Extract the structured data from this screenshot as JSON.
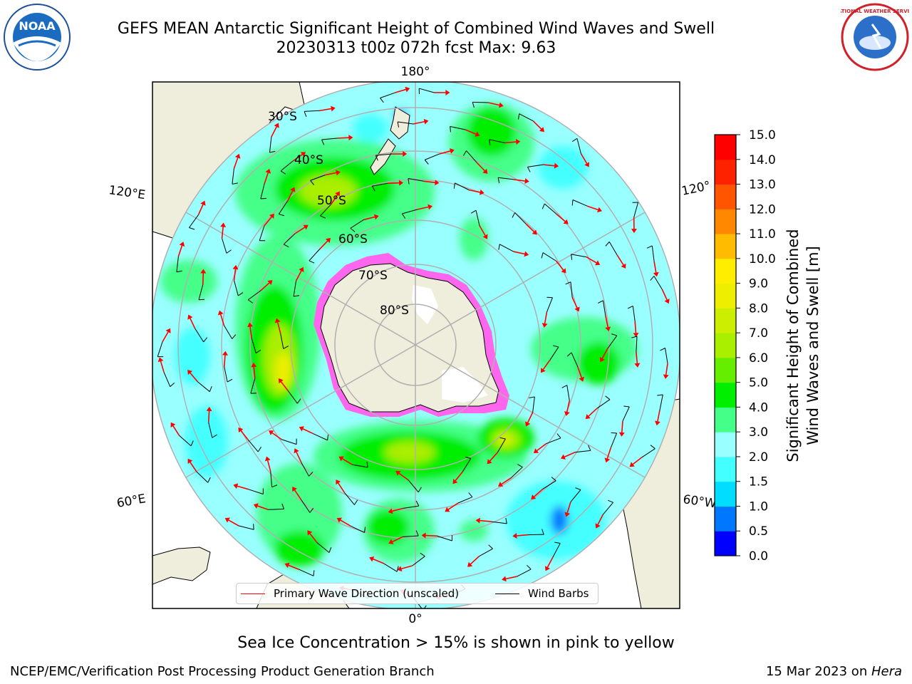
{
  "title": {
    "line1": "GEFS MEAN Antarctic Significant Height of Combined Wind Waves and Swell",
    "line2": "20230313 t00z 072h fcst   Max: 9.63"
  },
  "map": {
    "projection": "south-polar-stereographic",
    "longitude_labels": [
      "180°",
      "120°E",
      "120°",
      "60°E",
      "60°W",
      "0°"
    ],
    "latitude_labels": [
      "30°S",
      "40°S",
      "50°S",
      "60°S",
      "70°S",
      "80°S"
    ],
    "colors": {
      "ocean_base": "#99ffff",
      "land": "#efeedc",
      "ice_fringe": "#ff44dd",
      "graticule": "#b0b0b0"
    }
  },
  "legend": {
    "wave_label": "Primary Wave Direction (unscaled)",
    "wind_label": "Wind Barbs",
    "wave_color": "#ff0000",
    "wind_color": "#000000"
  },
  "colorbar": {
    "label_line1": "Significant Height of Combined",
    "label_line2": "Wind Waves and Swell [m]",
    "ticks": [
      "0.0",
      "0.5",
      "1.0",
      "1.5",
      "2.0",
      "3.0",
      "4.0",
      "5.0",
      "6.0",
      "7.0",
      "8.0",
      "9.0",
      "10.0",
      "11.0",
      "12.0",
      "13.0",
      "14.0",
      "15.0"
    ],
    "colors": [
      "#0000ff",
      "#0077ff",
      "#00ddff",
      "#44ffff",
      "#99ffff",
      "#44ff88",
      "#00ee00",
      "#66ee00",
      "#aaee00",
      "#ccee00",
      "#eeee00",
      "#ffee00",
      "#ffbb00",
      "#ff8800",
      "#ff5500",
      "#ff2200",
      "#ff0000"
    ]
  },
  "notes": {
    "sea_ice": "Sea Ice Concentration > 15% is shown in pink to yellow"
  },
  "footer": {
    "left": "NCEP/EMC/Verification Post Processing Product Generation Branch",
    "right_prefix": "15 Mar 2023 on ",
    "right_system": "Hera"
  },
  "logos": {
    "left": "NOAA",
    "right": "NATIONAL WEATHER SERVICE"
  }
}
